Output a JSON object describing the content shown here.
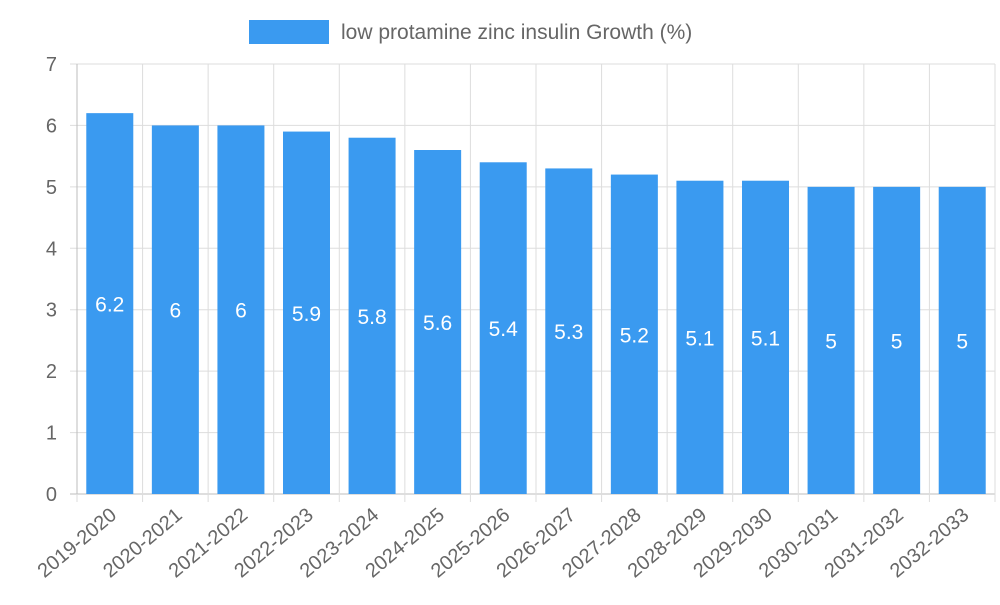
{
  "chart_data": {
    "type": "bar",
    "categories": [
      "2019-2020",
      "2020-2021",
      "2021-2022",
      "2022-2023",
      "2023-2024",
      "2024-2025",
      "2025-2026",
      "2026-2027",
      "2027-2028",
      "2028-2029",
      "2029-2030",
      "2030-2031",
      "2031-2032",
      "2032-2033"
    ],
    "series": [
      {
        "name": "low protamine zinc insulin Growth (%)",
        "values": [
          6.2,
          6,
          6,
          5.9,
          5.8,
          5.6,
          5.4,
          5.3,
          5.2,
          5.1,
          5.1,
          5,
          5,
          5
        ],
        "color": "#3a9af0"
      }
    ],
    "ylim": [
      0,
      7
    ],
    "yticks": [
      0,
      1,
      2,
      3,
      4,
      5,
      6,
      7
    ],
    "grid": true,
    "legend_position": "top-center",
    "data_labels": "inside-bar-middle"
  }
}
